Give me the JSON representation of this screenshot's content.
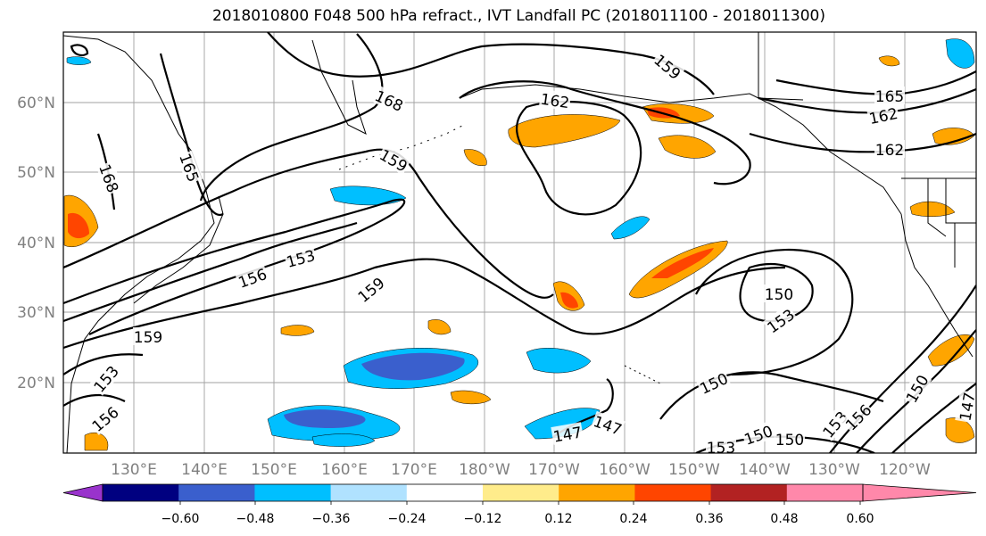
{
  "title": "2018010800 F048 500 hPa refract., IVT Landfall PC (2018011100 - 2018011300)",
  "map": {
    "lat_labels": [
      "60°N",
      "50°N",
      "40°N",
      "30°N",
      "20°N"
    ],
    "lon_labels": [
      "130°E",
      "140°E",
      "150°E",
      "160°E",
      "170°E",
      "180°W",
      "170°W",
      "160°W",
      "150°W",
      "140°W",
      "130°W",
      "120°W"
    ],
    "contour_labels": [
      "159",
      "162",
      "168",
      "165",
      "162",
      "162",
      "165",
      "168",
      "159",
      "156",
      "153",
      "159",
      "159",
      "150",
      "153",
      "153",
      "156",
      "150",
      "147",
      "147",
      "150",
      "150",
      "153",
      "156",
      "150",
      "147",
      "153"
    ]
  },
  "colorbar": {
    "tick_labels": [
      "−0.60",
      "−0.48",
      "−0.36",
      "−0.24",
      "−0.12",
      "0.12",
      "0.24",
      "0.36",
      "0.48",
      "0.60"
    ],
    "colors": [
      "#9933cc",
      "#000080",
      "#3a5fcd",
      "#00bfff",
      "#b0e2ff",
      "#ffffff",
      "#ffec8b",
      "#ffa500",
      "#ff4500",
      "#b22222",
      "#ff88aa"
    ]
  }
}
